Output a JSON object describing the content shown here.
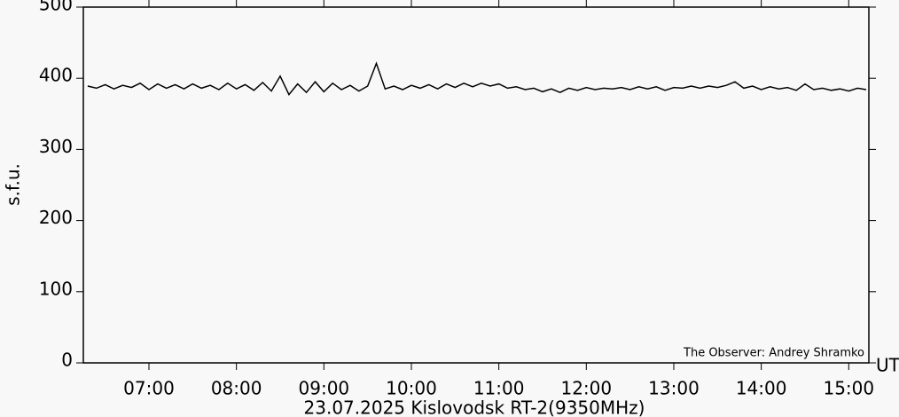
{
  "chart_data": {
    "type": "line",
    "ylabel": "s.f.u.",
    "xlabel": "23.07.2025 Kislovodsk RT-2(9350MHz)",
    "x_unit": "UT",
    "annotation": "The Observer: Andrey Shramko",
    "color": "#000000",
    "xlim": [
      6.25,
      15.23
    ],
    "ylim": [
      0,
      500
    ],
    "yticks": [
      0,
      100,
      200,
      300,
      400,
      500
    ],
    "xticks": [
      {
        "value": 7,
        "label": "07:00"
      },
      {
        "value": 8,
        "label": "08:00"
      },
      {
        "value": 9,
        "label": "09:00"
      },
      {
        "value": 10,
        "label": "10:00"
      },
      {
        "value": 11,
        "label": "11:00"
      },
      {
        "value": 12,
        "label": "12:00"
      },
      {
        "value": 13,
        "label": "13:00"
      },
      {
        "value": 14,
        "label": "14:00"
      },
      {
        "value": 15,
        "label": "15:00"
      }
    ],
    "x": [
      6.3,
      6.4,
      6.5,
      6.6,
      6.7,
      6.8,
      6.9,
      7.0,
      7.1,
      7.2,
      7.3,
      7.4,
      7.5,
      7.6,
      7.7,
      7.8,
      7.9,
      8.0,
      8.1,
      8.2,
      8.3,
      8.4,
      8.5,
      8.6,
      8.7,
      8.8,
      8.9,
      9.0,
      9.1,
      9.2,
      9.3,
      9.4,
      9.5,
      9.6,
      9.7,
      9.8,
      9.9,
      10.0,
      10.1,
      10.2,
      10.3,
      10.4,
      10.5,
      10.6,
      10.7,
      10.8,
      10.9,
      11.0,
      11.1,
      11.2,
      11.3,
      11.4,
      11.5,
      11.6,
      11.7,
      11.8,
      11.9,
      12.0,
      12.1,
      12.2,
      12.3,
      12.4,
      12.5,
      12.6,
      12.7,
      12.8,
      12.9,
      13.0,
      13.1,
      13.2,
      13.3,
      13.4,
      13.5,
      13.6,
      13.7,
      13.8,
      13.9,
      14.0,
      14.1,
      14.2,
      14.3,
      14.4,
      14.5,
      14.6,
      14.7,
      14.8,
      14.9,
      15.0,
      15.1,
      15.2
    ],
    "values": [
      389,
      386,
      391,
      385,
      390,
      387,
      393,
      384,
      392,
      386,
      391,
      385,
      392,
      386,
      390,
      384,
      393,
      385,
      391,
      383,
      394,
      382,
      403,
      377,
      392,
      380,
      395,
      381,
      393,
      384,
      390,
      382,
      389,
      421,
      385,
      389,
      384,
      390,
      386,
      391,
      385,
      392,
      387,
      393,
      388,
      393,
      389,
      392,
      386,
      388,
      384,
      386,
      381,
      385,
      380,
      386,
      383,
      387,
      384,
      386,
      385,
      387,
      384,
      388,
      385,
      388,
      383,
      387,
      386,
      389,
      386,
      389,
      387,
      390,
      395,
      386,
      389,
      384,
      388,
      385,
      387,
      383,
      392,
      384,
      386,
      383,
      385,
      382,
      386,
      384
    ]
  }
}
